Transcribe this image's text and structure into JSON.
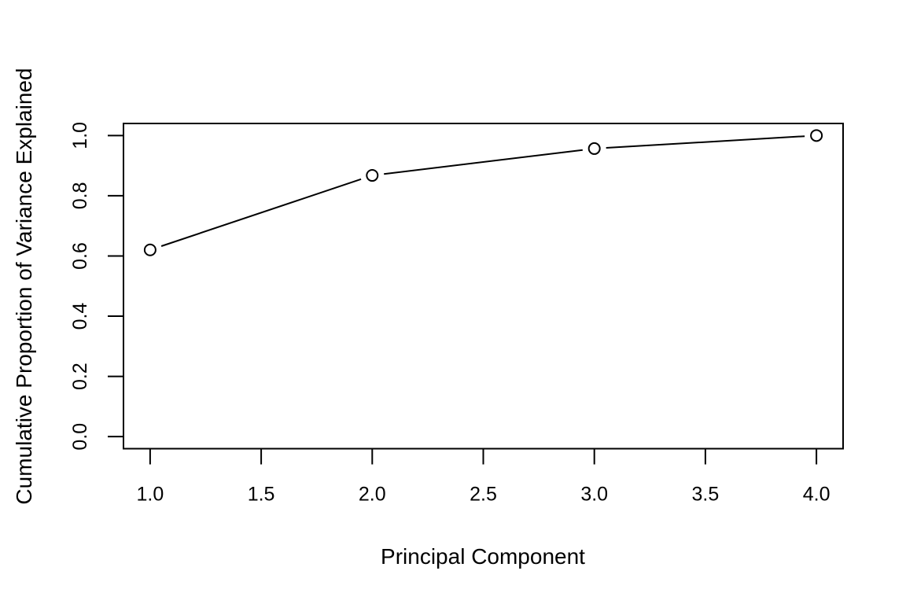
{
  "chart_data": {
    "type": "line",
    "title": "",
    "xlabel": "Principal Component",
    "ylabel": "Cumulative Proportion of Variance Explained",
    "x": [
      1,
      2,
      3,
      4
    ],
    "values": [
      0.6201,
      0.8675,
      0.9566,
      1.0
    ],
    "series_name": "cumulative-proportion-variance-explained",
    "xlim": [
      1,
      4
    ],
    "ylim": [
      0,
      1
    ],
    "x_ticks": [
      {
        "value": 1.0,
        "label": "1.0"
      },
      {
        "value": 1.5,
        "label": "1.5"
      },
      {
        "value": 2.0,
        "label": "2.0"
      },
      {
        "value": 2.5,
        "label": "2.5"
      },
      {
        "value": 3.0,
        "label": "3.0"
      },
      {
        "value": 3.5,
        "label": "3.5"
      },
      {
        "value": 4.0,
        "label": "4.0"
      }
    ],
    "y_ticks": [
      {
        "value": 0.0,
        "label": "0.0"
      },
      {
        "value": 0.2,
        "label": "0.2"
      },
      {
        "value": 0.4,
        "label": "0.4"
      },
      {
        "value": 0.6,
        "label": "0.6"
      },
      {
        "value": 0.8,
        "label": "0.8"
      },
      {
        "value": 1.0,
        "label": "1.0"
      }
    ],
    "marker": "open-circle",
    "line_style": "points-and-lines-with-gaps",
    "line_color": "#000000",
    "axis_color": "#000000",
    "background": "#ffffff",
    "grid": false,
    "legend": null
  }
}
